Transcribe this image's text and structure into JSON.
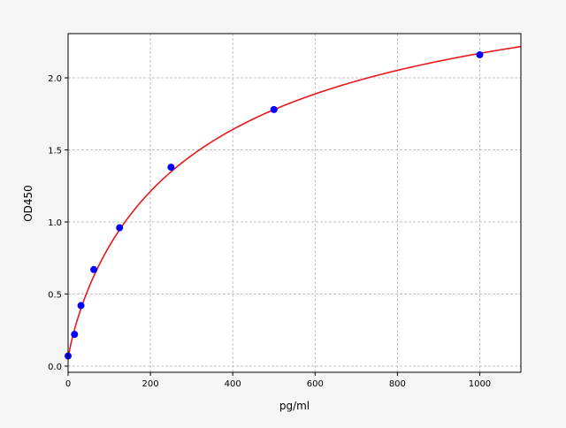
{
  "chart_data": {
    "type": "scatter",
    "title": "",
    "xlabel": "pg/ml",
    "ylabel": "OD450",
    "xlim": [
      0,
      1100
    ],
    "ylim": [
      -0.043,
      2.307
    ],
    "xticks": [
      0,
      200,
      400,
      600,
      800,
      1000
    ],
    "yticks": [
      0.0,
      0.5,
      1.0,
      1.5,
      2.0
    ],
    "xtick_labels": [
      "0",
      "200",
      "400",
      "600",
      "800",
      "1000"
    ],
    "ytick_labels": [
      "0.0",
      "0.5",
      "1.0",
      "1.5",
      "2.0"
    ],
    "grid": true,
    "points": {
      "x": [
        0,
        15.625,
        31.25,
        62.5,
        125,
        250,
        500,
        1000
      ],
      "y": [
        0.07,
        0.22,
        0.42,
        0.67,
        0.96,
        1.38,
        1.78,
        2.16
      ],
      "color": "#0000ff"
    },
    "fit_curve": {
      "color": "#e8171b"
    }
  }
}
